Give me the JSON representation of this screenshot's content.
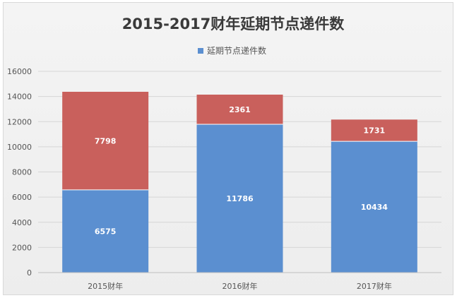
{
  "chart_data": {
    "type": "bar",
    "stacked": true,
    "title": "2015-2017财年延期节点递件数",
    "categories": [
      "2015财年",
      "2016财年",
      "2017财年"
    ],
    "series": [
      {
        "name": "延期节点递件数",
        "values": [
          6575,
          11786,
          10434
        ],
        "color": "#5b8fd0"
      },
      {
        "values": [
          7798,
          2361,
          1731
        ],
        "color": "#c9605c"
      }
    ],
    "ylim": [
      0,
      16000
    ],
    "yticks": [
      0,
      2000,
      4000,
      6000,
      8000,
      10000,
      12000,
      14000,
      16000
    ],
    "grid": true,
    "legend": "top"
  }
}
